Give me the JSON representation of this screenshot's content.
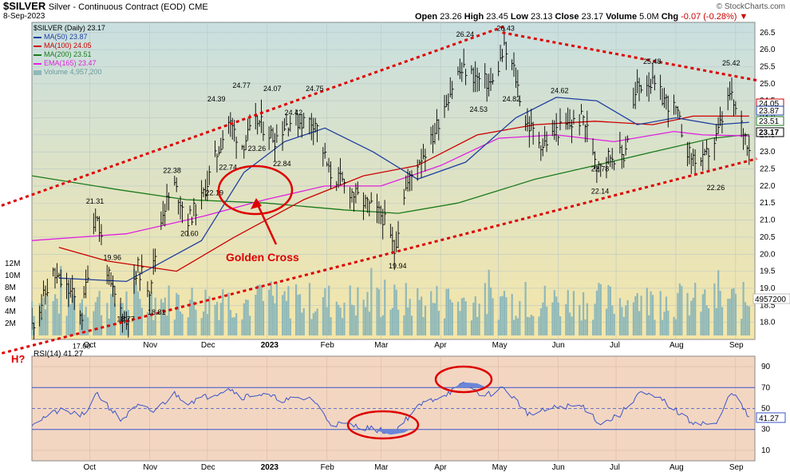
{
  "header": {
    "symbol": "$SILVER",
    "name": "Silver - Continuous Contract (EOD)",
    "exchange": "CME",
    "date": "8-Sep-2023",
    "open_label": "Open",
    "open": "23.26",
    "high_label": "High",
    "high": "23.45",
    "low_label": "Low",
    "low": "23.13",
    "close_label": "Close",
    "close": "23.17",
    "volume_label": "Volume",
    "volume": "5.0M",
    "chg_label": "Chg",
    "chg": "-0.07 (-0.28%)",
    "watermark": "© StockCharts.com"
  },
  "legend": [
    {
      "text": "$SILVER (Daily) 23.17",
      "color": "#000000"
    },
    {
      "text": "MA(50) 23.87",
      "color": "#1f3fa0"
    },
    {
      "text": "MA(100) 24.05",
      "color": "#cc0000"
    },
    {
      "text": "MA(200) 23.51",
      "color": "#1a7a1a"
    },
    {
      "text": "EMA(165) 23.47",
      "color": "#e020e0"
    },
    {
      "text": "Volume 4,957,200",
      "color": "#6aa0a0"
    }
  ],
  "rsi_label": "RSI(14) 41.27",
  "colors": {
    "price_bg_top": "#c8dfe0",
    "price_bg_bottom": "#f5e6a8",
    "rsi_bg": "#f3d6c2",
    "trend": "#dd0000",
    "ma50": "#1f3fa0",
    "ma100": "#cc0000",
    "ma200": "#1a7a1a",
    "ema165": "#e020e0",
    "volume": "#8fb8b8",
    "rsi": "#3a55c8"
  },
  "chart_data": {
    "type": "line",
    "x_labels": [
      "Oct",
      "Nov",
      "Dec",
      "2023",
      "Feb",
      "Mar",
      "Apr",
      "May",
      "Jun",
      "Jul",
      "Aug",
      "Sep"
    ],
    "price_axis": {
      "ylim": [
        17.5,
        26.8
      ],
      "ticks": [
        "18.0",
        "18.5",
        "19.0",
        "19.5",
        "20.0",
        "20.5",
        "21.0",
        "21.5",
        "22.0",
        "22.5",
        "23.0",
        "23.5",
        "24.0",
        "24.5",
        "25.0",
        "25.5",
        "26.0",
        "26.5"
      ]
    },
    "volume_axis": {
      "ylim": [
        0,
        14000000
      ],
      "ticks": [
        "2M",
        "4M",
        "6M",
        "8M",
        "10M",
        "12M"
      ]
    },
    "rsi_axis": {
      "ylim": [
        0,
        100
      ],
      "ticks": [
        "10",
        "30",
        "50",
        "70",
        "90"
      ]
    },
    "price_series": [
      [
        "2022-09-01",
        17.9
      ],
      [
        "2022-09-12",
        19.4
      ],
      [
        "2022-09-22",
        18.8
      ],
      [
        "2022-09-27",
        18.2
      ],
      [
        "2022-10-04",
        21.3
      ],
      [
        "2022-10-12",
        19.0
      ],
      [
        "2022-10-20",
        18.0
      ],
      [
        "2022-10-26",
        19.6
      ],
      [
        "2022-11-01",
        19.0
      ],
      [
        "2022-11-08",
        21.3
      ],
      [
        "2022-11-14",
        22.0
      ],
      [
        "2022-11-21",
        21.0
      ],
      [
        "2022-11-28",
        21.6
      ],
      [
        "2022-12-05",
        22.8
      ],
      [
        "2022-12-12",
        23.9
      ],
      [
        "2022-12-19",
        23.2
      ],
      [
        "2022-12-27",
        23.9
      ],
      [
        "2023-01-05",
        23.4
      ],
      [
        "2023-01-12",
        23.9
      ],
      [
        "2023-01-19",
        23.9
      ],
      [
        "2023-01-26",
        23.9
      ],
      [
        "2023-02-02",
        22.4
      ],
      [
        "2023-02-09",
        22.1
      ],
      [
        "2023-02-16",
        21.7
      ],
      [
        "2023-02-23",
        21.4
      ],
      [
        "2023-03-02",
        21.1
      ],
      [
        "2023-03-08",
        20.1
      ],
      [
        "2023-03-13",
        21.8
      ],
      [
        "2023-03-20",
        22.7
      ],
      [
        "2023-03-27",
        23.3
      ],
      [
        "2023-04-03",
        24.4
      ],
      [
        "2023-04-10",
        25.3
      ],
      [
        "2023-04-14",
        25.4
      ],
      [
        "2023-04-21",
        25.1
      ],
      [
        "2023-04-28",
        25.0
      ],
      [
        "2023-05-04",
        26.0
      ],
      [
        "2023-05-09",
        25.4
      ],
      [
        "2023-05-15",
        23.9
      ],
      [
        "2023-05-24",
        23.2
      ],
      [
        "2023-05-31",
        23.6
      ],
      [
        "2023-06-07",
        23.8
      ],
      [
        "2023-06-14",
        24.0
      ],
      [
        "2023-06-21",
        22.7
      ],
      [
        "2023-06-28",
        22.9
      ],
      [
        "2023-07-05",
        22.9
      ],
      [
        "2023-07-12",
        24.9
      ],
      [
        "2023-07-18",
        25.1
      ],
      [
        "2023-07-25",
        24.6
      ],
      [
        "2023-08-01",
        24.2
      ],
      [
        "2023-08-08",
        22.9
      ],
      [
        "2023-08-15",
        22.7
      ],
      [
        "2023-08-22",
        23.4
      ],
      [
        "2023-08-29",
        24.7
      ],
      [
        "2023-09-01",
        24.2
      ],
      [
        "2023-09-08",
        23.2
      ]
    ],
    "ma50": [
      [
        "2022-09-15",
        19.3
      ],
      [
        "2022-10-20",
        19.2
      ],
      [
        "2022-11-28",
        20.4
      ],
      [
        "2022-12-20",
        22.4
      ],
      [
        "2023-01-10",
        23.3
      ],
      [
        "2023-01-31",
        23.7
      ],
      [
        "2023-02-25",
        23.0
      ],
      [
        "2023-03-20",
        22.2
      ],
      [
        "2023-04-14",
        22.7
      ],
      [
        "2023-05-10",
        24.0
      ],
      [
        "2023-05-31",
        24.6
      ],
      [
        "2023-06-21",
        24.5
      ],
      [
        "2023-07-12",
        23.8
      ],
      [
        "2023-08-01",
        24.0
      ],
      [
        "2023-08-22",
        23.8
      ],
      [
        "2023-09-08",
        23.87
      ]
    ],
    "ma100": [
      [
        "2022-09-15",
        20.2
      ],
      [
        "2022-10-10",
        19.8
      ],
      [
        "2022-11-15",
        19.5
      ],
      [
        "2022-12-15",
        20.5
      ],
      [
        "2023-01-20",
        21.6
      ],
      [
        "2023-02-20",
        22.3
      ],
      [
        "2023-03-20",
        22.6
      ],
      [
        "2023-04-20",
        23.5
      ],
      [
        "2023-05-20",
        23.8
      ],
      [
        "2023-06-20",
        23.9
      ],
      [
        "2023-07-20",
        23.8
      ],
      [
        "2023-08-10",
        24.05
      ],
      [
        "2023-09-08",
        24.05
      ]
    ],
    "ma200": [
      [
        "2022-09-01",
        22.3
      ],
      [
        "2022-10-15",
        21.9
      ],
      [
        "2022-11-20",
        21.6
      ],
      [
        "2022-12-31",
        21.5
      ],
      [
        "2023-02-10",
        21.3
      ],
      [
        "2023-03-10",
        21.2
      ],
      [
        "2023-04-10",
        21.5
      ],
      [
        "2023-05-20",
        22.2
      ],
      [
        "2023-06-20",
        22.6
      ],
      [
        "2023-07-20",
        23.0
      ],
      [
        "2023-08-20",
        23.4
      ],
      [
        "2023-09-08",
        23.51
      ]
    ],
    "ema165": [
      [
        "2022-09-01",
        20.4
      ],
      [
        "2022-10-20",
        20.6
      ],
      [
        "2022-11-28",
        21.1
      ],
      [
        "2022-12-31",
        21.6
      ],
      [
        "2023-01-31",
        22.0
      ],
      [
        "2023-03-01",
        22.0
      ],
      [
        "2023-04-01",
        22.6
      ],
      [
        "2023-05-01",
        23.4
      ],
      [
        "2023-05-31",
        23.5
      ],
      [
        "2023-06-30",
        23.3
      ],
      [
        "2023-07-31",
        23.6
      ],
      [
        "2023-08-15",
        23.5
      ],
      [
        "2023-09-08",
        23.47
      ]
    ],
    "trendlines": [
      [
        [
          "2022-08-10",
          21.3
        ],
        [
          "2023-05-05",
          26.7
        ]
      ],
      [
        [
          "2022-08-10",
          17.0
        ],
        [
          "2023-09-12",
          22.8
        ]
      ],
      [
        [
          "2023-05-03",
          26.5
        ],
        [
          "2023-09-12",
          25.1
        ]
      ]
    ],
    "annotations": [
      [
        "2022-09-27",
        "17.00",
        17.3
      ],
      [
        "2022-10-04",
        "21.31",
        21.55
      ],
      [
        "2022-10-13",
        "19.96",
        19.9
      ],
      [
        "2022-10-20",
        "18.77",
        18.1
      ],
      [
        "2022-11-05",
        "18.81",
        18.3
      ],
      [
        "2022-11-13",
        "22.38",
        22.45
      ],
      [
        "2022-11-22",
        "20.60",
        20.6
      ],
      [
        "2022-12-05",
        "22.19",
        21.8
      ],
      [
        "2022-12-06",
        "24.39",
        24.55
      ],
      [
        "2022-12-12",
        "22.74",
        22.55
      ],
      [
        "2022-12-19",
        "24.77",
        24.95
      ],
      [
        "2022-12-27",
        "23.26",
        23.1
      ],
      [
        "2023-01-04",
        "24.07",
        24.85
      ],
      [
        "2023-01-09",
        "22.84",
        22.65
      ],
      [
        "2023-01-15",
        "24.42",
        24.15
      ],
      [
        "2023-01-26",
        "24.75",
        24.85
      ],
      [
        "2023-03-10",
        "19.94",
        19.65
      ],
      [
        "2023-04-14",
        "26.24",
        26.45
      ],
      [
        "2023-04-21",
        "24.53",
        24.25
      ],
      [
        "2023-05-05",
        "26.43",
        26.62
      ],
      [
        "2023-05-08",
        "24.82",
        24.55
      ],
      [
        "2023-06-02",
        "24.62",
        24.8
      ],
      [
        "2023-06-23",
        "22.78",
        22.5
      ],
      [
        "2023-06-23",
        "22.14",
        21.85
      ],
      [
        "2023-07-20",
        "25.48",
        25.65
      ],
      [
        "2023-08-22",
        "22.26",
        21.95
      ],
      [
        "2023-08-30",
        "25.42",
        25.6
      ]
    ],
    "ma_right_labels": [
      "24.05",
      "23.87",
      "23.51",
      "23.17"
    ],
    "last_close": 23.17,
    "last_volume": "4957200",
    "rsi_last": 41.27,
    "rsi_series": [
      [
        "2022-09-01",
        36
      ],
      [
        "2022-09-15",
        48
      ],
      [
        "2022-09-29",
        43
      ],
      [
        "2022-10-04",
        66
      ],
      [
        "2022-10-17",
        39
      ],
      [
        "2022-10-26",
        52
      ],
      [
        "2022-11-03",
        47
      ],
      [
        "2022-11-14",
        64
      ],
      [
        "2022-11-21",
        56
      ],
      [
        "2022-12-05",
        64
      ],
      [
        "2022-12-12",
        70
      ],
      [
        "2022-12-19",
        61
      ],
      [
        "2022-12-27",
        64
      ],
      [
        "2023-01-10",
        58
      ],
      [
        "2023-01-24",
        60
      ],
      [
        "2023-02-03",
        36
      ],
      [
        "2023-02-17",
        33
      ],
      [
        "2023-03-01",
        29
      ],
      [
        "2023-03-08",
        27
      ],
      [
        "2023-03-13",
        38
      ],
      [
        "2023-03-22",
        54
      ],
      [
        "2023-04-05",
        65
      ],
      [
        "2023-04-13",
        73
      ],
      [
        "2023-04-24",
        62
      ],
      [
        "2023-05-04",
        70
      ],
      [
        "2023-05-17",
        44
      ],
      [
        "2023-06-02",
        52
      ],
      [
        "2023-06-14",
        52
      ],
      [
        "2023-06-23",
        35
      ],
      [
        "2023-07-03",
        44
      ],
      [
        "2023-07-13",
        65
      ],
      [
        "2023-07-25",
        58
      ],
      [
        "2023-08-08",
        38
      ],
      [
        "2023-08-22",
        34
      ],
      [
        "2023-08-30",
        67
      ],
      [
        "2023-09-08",
        41
      ]
    ]
  },
  "callouts": {
    "golden_cross": "Golden Cross",
    "h_marker": "H?"
  }
}
